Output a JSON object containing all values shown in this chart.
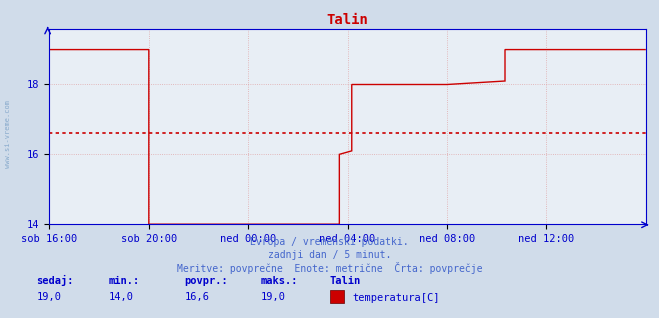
{
  "title": "Talin",
  "bg_color": "#d0dcea",
  "plot_bg_color": "#e8eef5",
  "line_color": "#cc0000",
  "avg_line_color": "#cc0000",
  "avg_value": 16.6,
  "y_min": 14.0,
  "y_max": 19.6,
  "y_ticks": [
    14,
    16,
    18
  ],
  "grid_color": "#dd8888",
  "axis_color": "#0000cc",
  "text_color": "#4466cc",
  "title_color": "#cc0000",
  "watermark": "www.si-vreme.com",
  "footer_line1": "Evropa / vremenski podatki.",
  "footer_line2": "zadnji dan / 5 minut.",
  "footer_line3": "Meritve: povprečne  Enote: metrične  Črta: povprečje",
  "legend_labels": [
    "sedaj:",
    "min.:",
    "povpr.:",
    "maks.:",
    "Talin"
  ],
  "legend_values": [
    "19,0",
    "14,0",
    "16,6",
    "19,0"
  ],
  "legend_series": "temperatura[C]",
  "x_tick_labels": [
    "sob 16:00",
    "sob 20:00",
    "ned 00:00",
    "ned 04:00",
    "ned 08:00",
    "ned 12:00"
  ],
  "x_tick_positions": [
    0,
    240,
    480,
    720,
    960,
    1200
  ],
  "total_points": 1440,
  "seg_x": [
    0,
    240,
    240,
    480,
    480,
    700,
    700,
    730,
    730,
    960,
    960,
    1100,
    1100,
    1440
  ],
  "seg_y": [
    19.0,
    19.0,
    14.0,
    14.0,
    14.0,
    14.0,
    16.0,
    16.1,
    18.0,
    18.0,
    18.0,
    18.1,
    19.0,
    19.0
  ]
}
